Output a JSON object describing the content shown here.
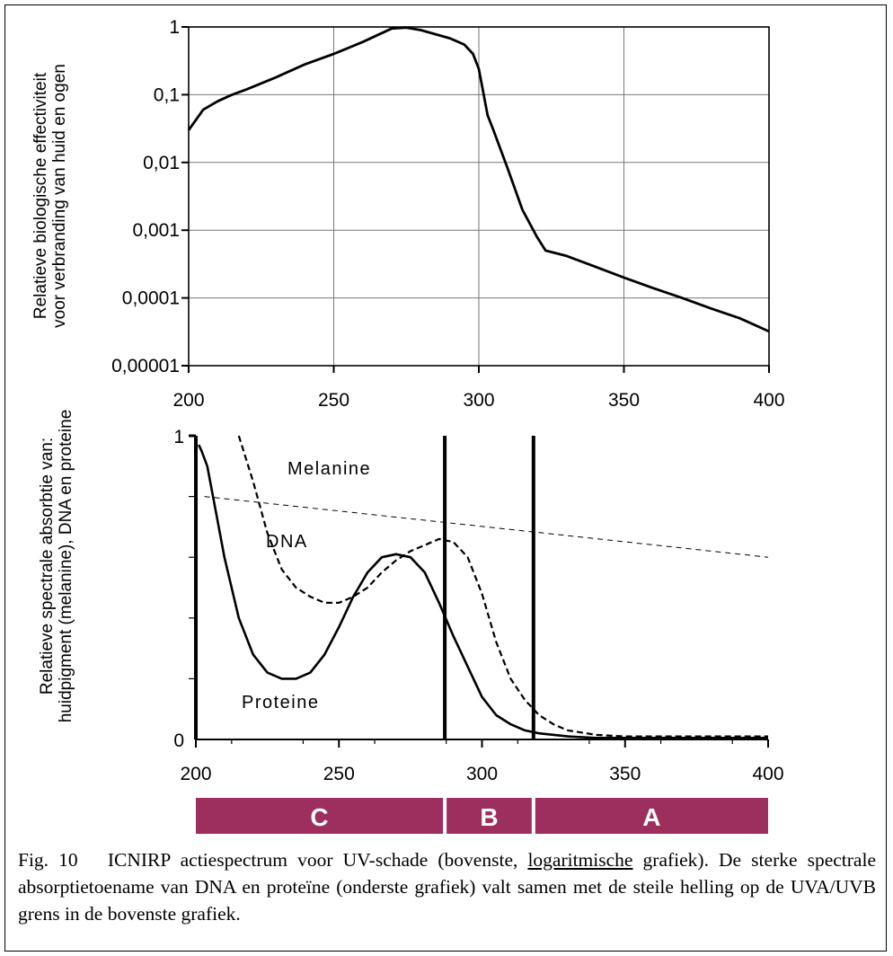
{
  "chart_data": [
    {
      "type": "line",
      "ylabel_lines": [
        "Relatieve biologische effectiviteit",
        "voor verbranding van huid en ogen"
      ],
      "xlim": [
        200,
        400
      ],
      "x_ticks": [
        "200",
        "250",
        "300",
        "350",
        "400"
      ],
      "y_scale": "log",
      "ylim": [
        1e-05,
        1
      ],
      "y_ticks": [
        "1",
        "0,1",
        "0,01",
        "0,001",
        "0,0001",
        "0,00001"
      ],
      "grid": true,
      "series": [
        {
          "x": [
            200,
            205,
            210,
            215,
            220,
            230,
            240,
            250,
            260,
            270,
            275,
            280,
            290,
            295,
            298,
            300,
            303,
            305,
            310,
            315,
            320,
            323,
            330,
            340,
            350,
            360,
            370,
            380,
            390,
            400
          ],
          "y": [
            0.03,
            0.06,
            0.08,
            0.1,
            0.12,
            0.18,
            0.28,
            0.4,
            0.6,
            0.95,
            0.98,
            0.9,
            0.68,
            0.55,
            0.4,
            0.24,
            0.05,
            0.03,
            0.008,
            0.002,
            0.0008,
            0.0005,
            0.00042,
            0.00029,
            0.0002,
            0.00014,
            0.0001,
            7e-05,
            5e-05,
            3.2e-05
          ]
        }
      ]
    },
    {
      "type": "line",
      "ylabel_lines": [
        "Relatieve spectrale absorbtie van:",
        "huidpigment (melanine), DNA en proteine"
      ],
      "xlim": [
        200,
        400
      ],
      "x_ticks": [
        "200",
        "250",
        "300",
        "350",
        "400"
      ],
      "ylim": [
        0,
        1
      ],
      "y_ticks": [
        "1",
        "0"
      ],
      "y_minor_ticks": [
        0.2,
        0.4,
        0.6,
        0.8
      ],
      "annotations": [
        "Melanine",
        "DNA",
        "Proteine"
      ],
      "boundaries": [
        287,
        318
      ],
      "bands": [
        {
          "label": "C",
          "from": 200,
          "to": 287
        },
        {
          "label": "B",
          "from": 287,
          "to": 318
        },
        {
          "label": "A",
          "from": 318,
          "to": 400
        }
      ],
      "band_color": "#9c2f5e",
      "series": [
        {
          "label": "Melanine",
          "style": "thin-dashed",
          "x": [
            203,
            400
          ],
          "y": [
            0.8,
            0.6
          ]
        },
        {
          "label": "DNA",
          "style": "dashed",
          "x": [
            215,
            220,
            225,
            230,
            235,
            240,
            245,
            250,
            255,
            260,
            265,
            270,
            275,
            280,
            285,
            290,
            295,
            300,
            305,
            310,
            315,
            320,
            325,
            330,
            340,
            350,
            400
          ],
          "y": [
            1.0,
            0.85,
            0.68,
            0.56,
            0.5,
            0.47,
            0.45,
            0.45,
            0.47,
            0.5,
            0.55,
            0.59,
            0.62,
            0.64,
            0.66,
            0.65,
            0.6,
            0.48,
            0.32,
            0.2,
            0.13,
            0.08,
            0.05,
            0.03,
            0.015,
            0.01,
            0.01
          ]
        },
        {
          "label": "Proteine",
          "style": "solid",
          "x": [
            201,
            202,
            204,
            207,
            210,
            215,
            220,
            225,
            230,
            235,
            240,
            245,
            250,
            255,
            260,
            265,
            270,
            275,
            280,
            285,
            290,
            295,
            300,
            305,
            310,
            315,
            320,
            330,
            340,
            400
          ],
          "y": [
            0.97,
            0.95,
            0.9,
            0.75,
            0.6,
            0.4,
            0.28,
            0.22,
            0.2,
            0.2,
            0.22,
            0.28,
            0.37,
            0.47,
            0.55,
            0.6,
            0.61,
            0.6,
            0.55,
            0.45,
            0.34,
            0.24,
            0.14,
            0.08,
            0.05,
            0.03,
            0.02,
            0.01,
            0.005,
            0.005
          ]
        }
      ]
    }
  ],
  "caption": {
    "fig_label": "Fig. 10",
    "text_before": "ICNIRP actiespectrum voor UV-schade (bovenste, ",
    "underlined": "logaritmische",
    "text_after": " grafiek). De sterke spectrale absorptietoename van DNA en proteïne (onderste grafiek) valt samen met de steile helling op de UVA/UVB grens in de bovenste grafiek."
  }
}
